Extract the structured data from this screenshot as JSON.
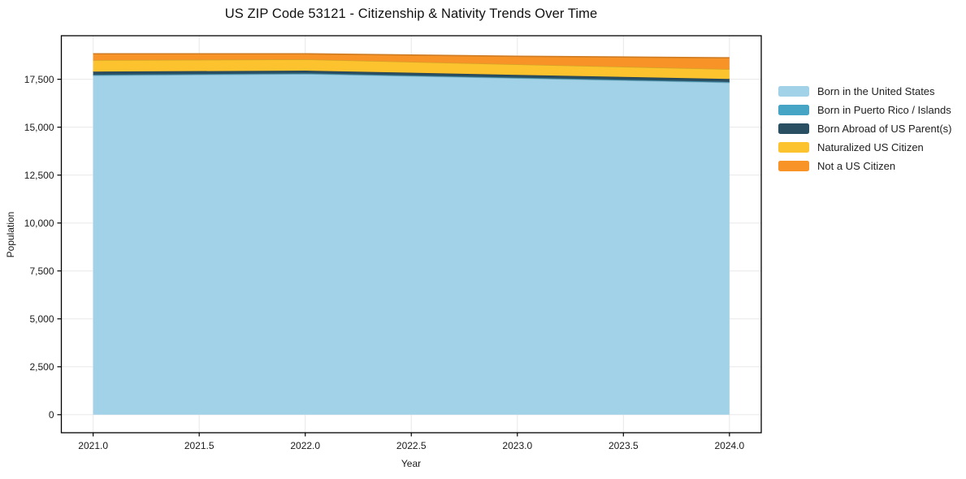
{
  "chart_data": {
    "type": "area",
    "stacked": true,
    "title": "US ZIP Code 53121 - Citizenship & Nativity Trends Over Time",
    "xlabel": "Year",
    "ylabel": "Population",
    "x": [
      2021,
      2022,
      2023,
      2024
    ],
    "series": [
      {
        "name": "Born in the United States",
        "color": "#a2d2e8",
        "values": [
          17700,
          17780,
          17560,
          17330
        ]
      },
      {
        "name": "Born in Puerto Rico / Islands",
        "color": "#46a5c5",
        "values": [
          35,
          30,
          25,
          35
        ]
      },
      {
        "name": "Born Abroad of US Parent(s)",
        "color": "#2a4f63",
        "values": [
          165,
          140,
          145,
          150
        ]
      },
      {
        "name": "Naturalized US Citizen",
        "color": "#fdc32f",
        "values": [
          600,
          590,
          550,
          515
        ]
      },
      {
        "name": "Not a US Citizen",
        "color": "#f79327",
        "values": [
          330,
          290,
          420,
          590
        ]
      }
    ],
    "totals_by_year": [
      18830,
      18830,
      18700,
      18620
    ],
    "x_ticks": {
      "values": [
        2021.0,
        2021.5,
        2022.0,
        2022.5,
        2023.0,
        2023.5,
        2024.0
      ],
      "labels": [
        "2021.0",
        "2021.5",
        "2022.0",
        "2022.5",
        "2023.0",
        "2023.5",
        "2024.0"
      ]
    },
    "y_ticks": {
      "values": [
        0,
        2500,
        5000,
        7500,
        10000,
        12500,
        15000,
        17500
      ],
      "labels": [
        "0",
        "2,500",
        "5,000",
        "7,500",
        "10,000",
        "12,500",
        "15,000",
        "17,500"
      ]
    },
    "xlim": [
      2020.85,
      2024.15
    ],
    "ylim": [
      -941,
      19772
    ],
    "grid": true,
    "grid_color": "#e8e8e8",
    "spine_color": "#000000",
    "tick_color": "#000000",
    "tick_label_color": "#1a1a1a",
    "legend_position": "right"
  }
}
